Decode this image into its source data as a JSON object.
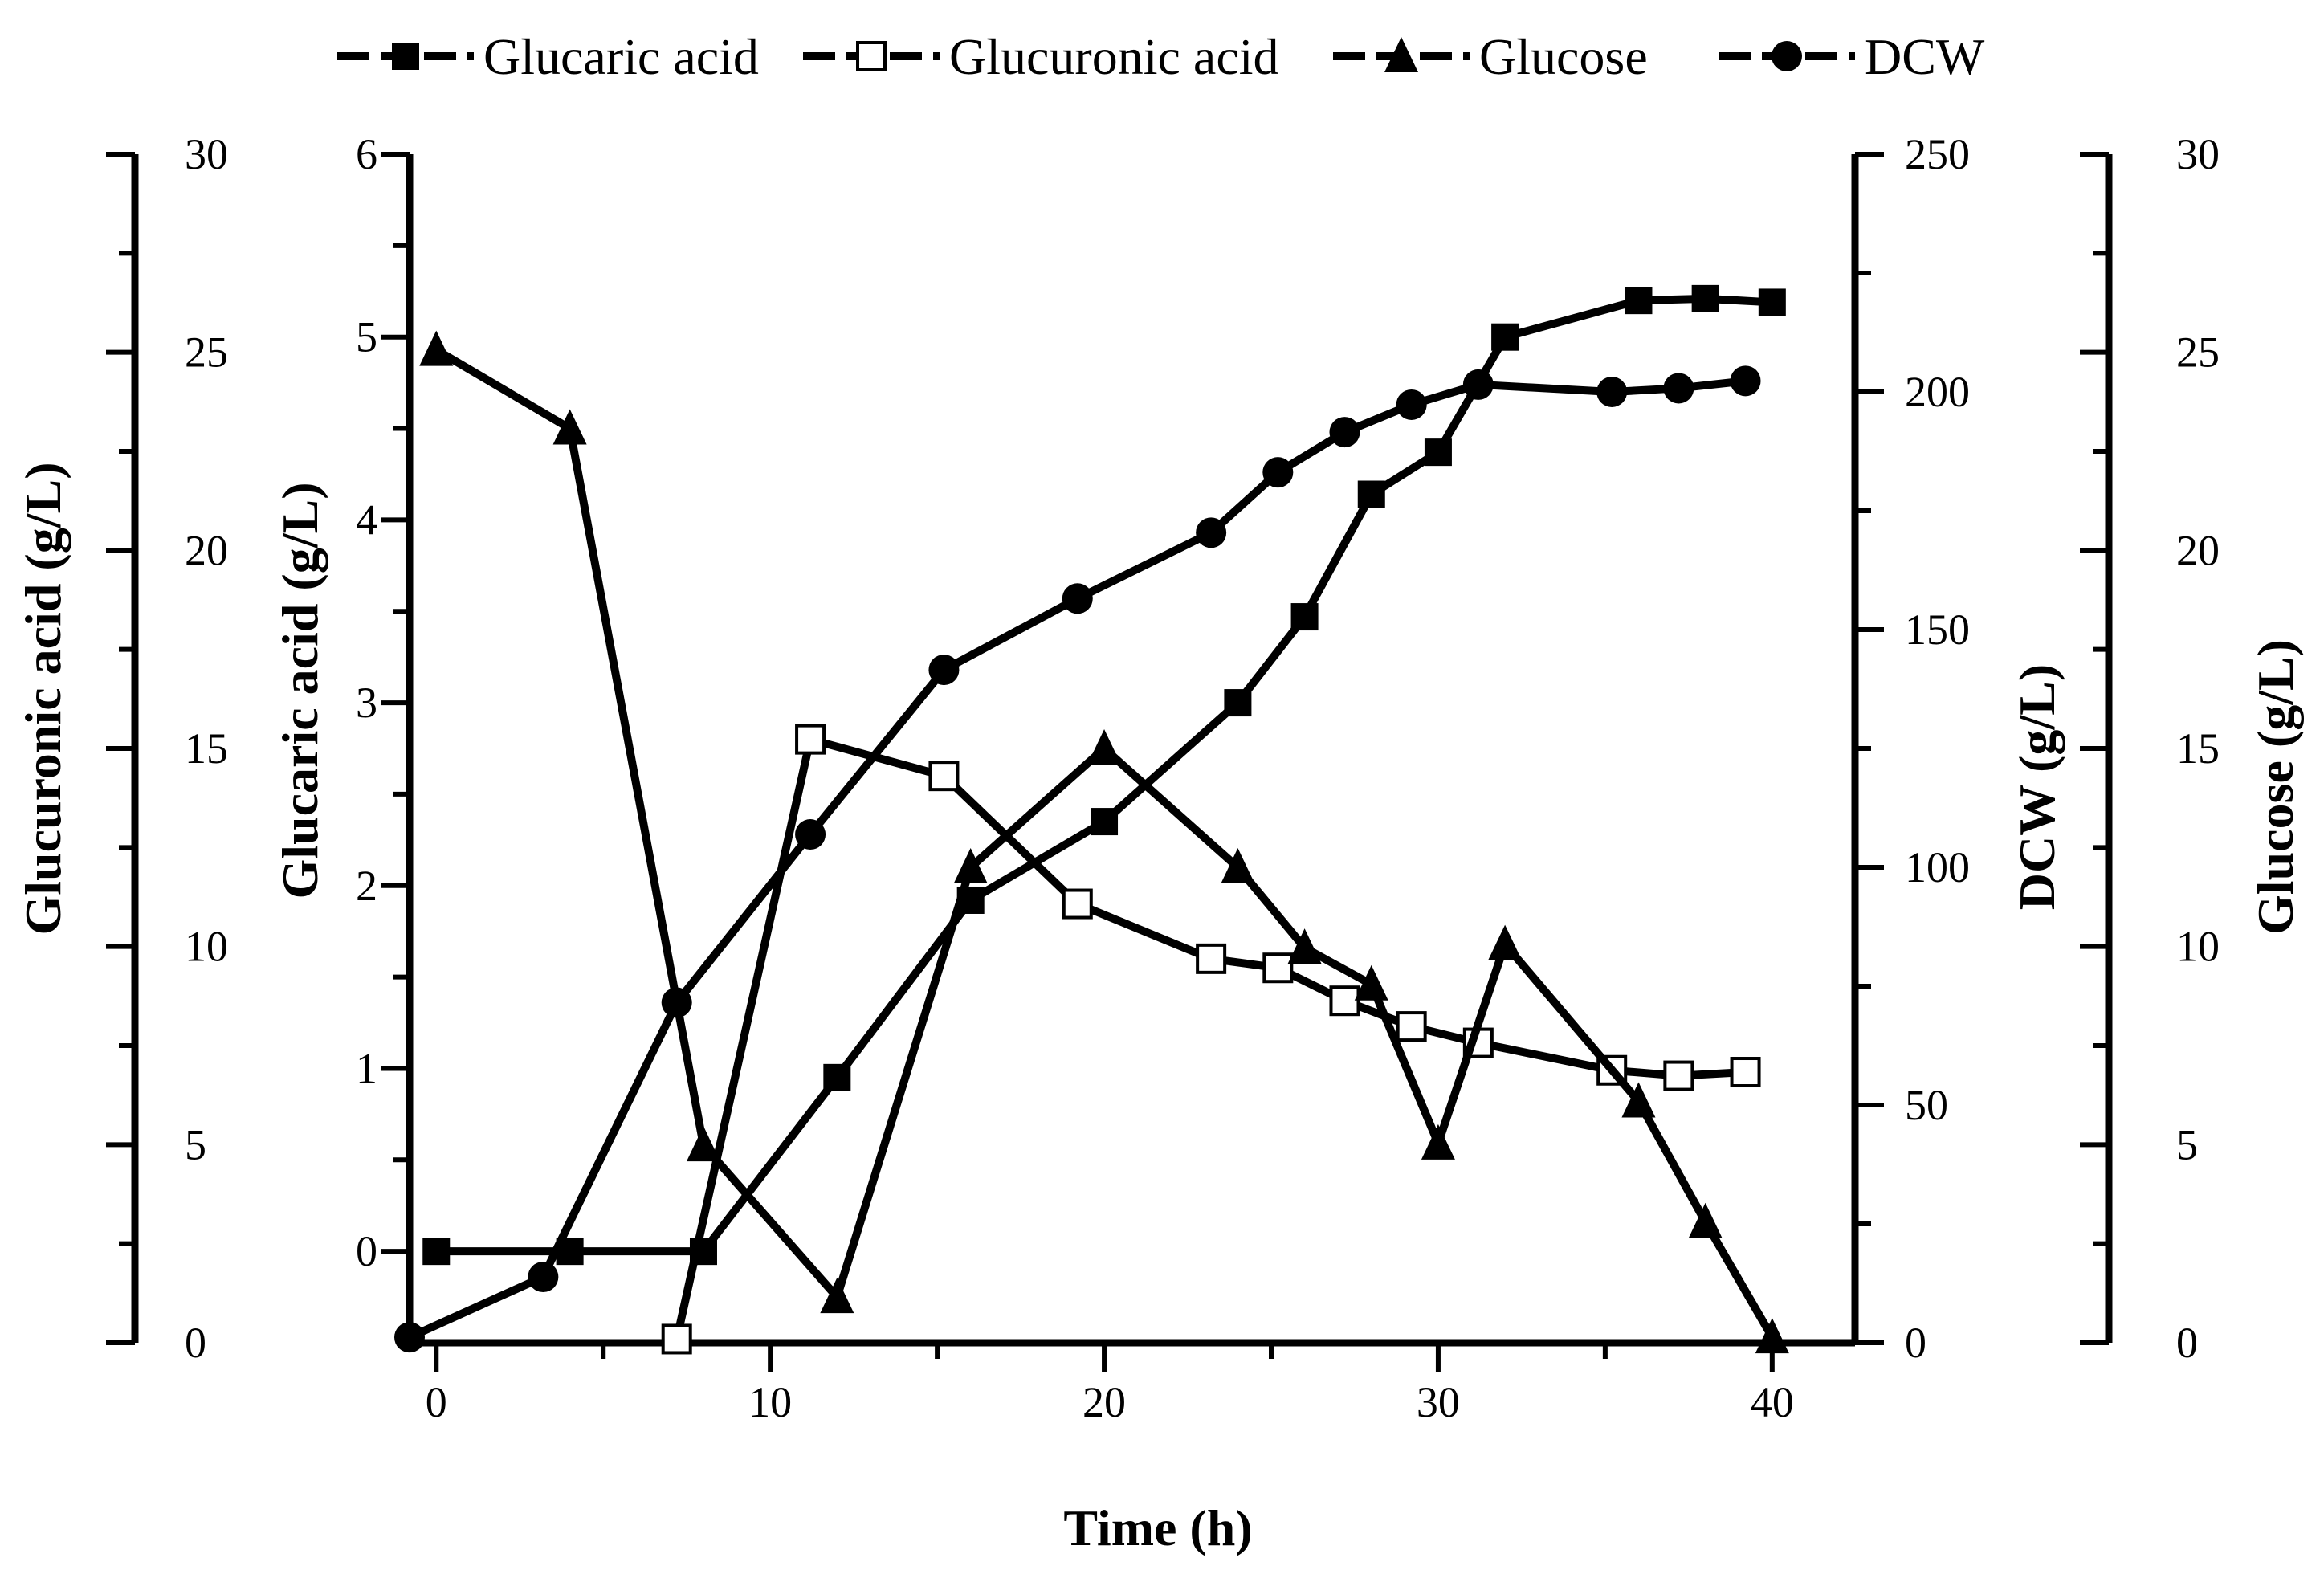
{
  "chart_data": {
    "type": "line",
    "xlabel": "Time (h)",
    "xlim": [
      -0.8,
      42
    ],
    "xticks": [
      0,
      10,
      20,
      30,
      40
    ],
    "legend_position": "top",
    "axes": {
      "glucaric": {
        "label": "Glucaric acid (g/L)",
        "min": -0.5,
        "max": 6,
        "ticks": [
          0,
          1,
          2,
          3,
          4,
          5,
          6
        ],
        "side": "left-inner"
      },
      "glucuronic": {
        "label": "Glucuronic acid (g/L)",
        "min": 0,
        "max": 30,
        "ticks": [
          0,
          5,
          10,
          15,
          20,
          25,
          30
        ],
        "side": "left-outer"
      },
      "dcw": {
        "label": "DCW (g/L)",
        "min": 0,
        "max": 250,
        "ticks": [
          0,
          50,
          100,
          150,
          200,
          250
        ],
        "side": "right-inner"
      },
      "glucose": {
        "label": "Glucose (g/L)",
        "min": 0,
        "max": 30,
        "ticks": [
          0,
          5,
          10,
          15,
          20,
          25,
          30
        ],
        "side": "right-outer"
      }
    },
    "series": [
      {
        "name": "Glucaric acid",
        "marker": "square-filled",
        "axis": "glucaric",
        "x": [
          0,
          4,
          8,
          12,
          16,
          20,
          24,
          26,
          28,
          30,
          32,
          36,
          38,
          40
        ],
        "values": [
          0,
          0,
          0,
          0.95,
          1.92,
          2.35,
          3.0,
          3.47,
          4.14,
          4.37,
          5.0,
          5.2,
          5.21,
          5.19
        ]
      },
      {
        "name": "Glucuronic acid",
        "marker": "square-open",
        "axis": "glucaric",
        "x": [
          7.2,
          11.2,
          15.2,
          19.2,
          23.2,
          25.2,
          27.2,
          29.2,
          31.2,
          35.2,
          37.2,
          39.2
        ],
        "values": [
          -0.48,
          2.8,
          2.6,
          1.9,
          1.6,
          1.55,
          1.37,
          1.23,
          1.14,
          0.99,
          0.96,
          0.98
        ]
      },
      {
        "name": "Glucose",
        "marker": "triangle-filled",
        "axis": "glucaric",
        "x": [
          0,
          4,
          8,
          12,
          16,
          20,
          24,
          26,
          28,
          30,
          32,
          36,
          38,
          40
        ],
        "values": [
          4.93,
          4.5,
          0.58,
          -0.25,
          2.1,
          2.75,
          2.1,
          1.66,
          1.46,
          0.59,
          1.68,
          0.82,
          0.16,
          -0.47
        ]
      },
      {
        "name": "DCW",
        "marker": "circle-filled",
        "axis": "glucaric",
        "x": [
          -0.8,
          3.2,
          7.2,
          11.2,
          15.2,
          19.2,
          23.2,
          25.2,
          27.2,
          29.2,
          31.2,
          35.2,
          37.2,
          39.2
        ],
        "values": [
          -0.47,
          -0.14,
          1.36,
          2.28,
          3.18,
          3.57,
          3.93,
          4.26,
          4.48,
          4.63,
          4.74,
          4.7,
          4.72,
          4.76
        ]
      }
    ]
  }
}
